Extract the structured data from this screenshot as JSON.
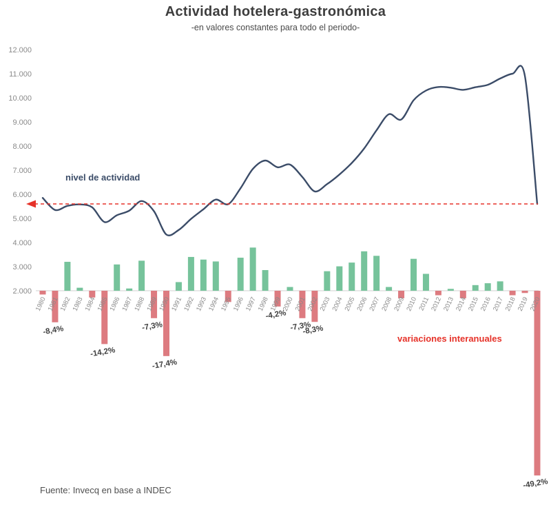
{
  "title": "Actividad hotelera-gastronómica",
  "subtitle": "-en valores constantes para todo el periodo-",
  "source": "Fuente: Invecq en base a INDEC",
  "series_labels": {
    "line": "nivel de actividad",
    "bars": "variaciones interanuales"
  },
  "colors": {
    "line": "#3b4c68",
    "bar_positive": "#76c39b",
    "bar_negative": "#dd7b80",
    "reference": "#e63229",
    "axis_text": "#8a8a8a",
    "annotation_text": "#3f3f3f",
    "title_text": "#3d3d3d",
    "subtitle_text": "#4a4a4a",
    "source_text": "#4f4f4f"
  },
  "chart_data": {
    "type": "line+bar combo",
    "title": "Actividad hotelera-gastronómica",
    "subtitle": "-en valores constantes para todo el periodo-",
    "x": [
      1980,
      1981,
      1982,
      1983,
      1984,
      1985,
      1986,
      1987,
      1988,
      1989,
      1990,
      1991,
      1992,
      1993,
      1994,
      1995,
      1996,
      1997,
      1998,
      1999,
      2000,
      2001,
      2002,
      2003,
      2004,
      2005,
      2006,
      2007,
      2008,
      2009,
      2010,
      2011,
      2012,
      2013,
      2014,
      2015,
      2016,
      2017,
      2018,
      2019,
      2020
    ],
    "series": [
      {
        "name": "nivel de actividad",
        "type": "line",
        "axis": "left",
        "values": [
          5850,
          5350,
          5520,
          5580,
          5460,
          4850,
          5130,
          5320,
          5720,
          5300,
          4330,
          4520,
          4980,
          5380,
          5780,
          5590,
          6250,
          7050,
          7400,
          7120,
          7230,
          6720,
          6120,
          6420,
          6820,
          7300,
          7900,
          8650,
          9320,
          9100,
          9900,
          10300,
          10450,
          10420,
          10330,
          10440,
          10540,
          10800,
          11000,
          10920,
          5600
        ]
      },
      {
        "name": "variaciones interanuales",
        "type": "bar",
        "unit": "%",
        "values": [
          -1.0,
          -8.4,
          7.7,
          0.8,
          -1.8,
          -14.2,
          7.0,
          0.6,
          8.0,
          -7.3,
          -17.4,
          2.3,
          9.0,
          8.3,
          7.8,
          -3.0,
          8.8,
          11.5,
          5.5,
          -4.2,
          1.0,
          -7.3,
          -8.3,
          5.2,
          6.5,
          7.5,
          10.5,
          9.3,
          1.0,
          -2.0,
          8.5,
          4.5,
          -1.2,
          0.5,
          -2.0,
          1.5,
          2.0,
          2.5,
          -1.2,
          -0.6,
          -49.2
        ]
      }
    ],
    "left_axis_ticks": [
      "12.000",
      "11.000",
      "10.000",
      "9.000",
      "8.000",
      "7.000",
      "6.000",
      "5.000",
      "4.000",
      "3.000",
      "2.000"
    ],
    "left_axis_range": [
      2000,
      12000
    ],
    "reference_line_value": 5600,
    "grid": "off",
    "annotations": [
      {
        "year": 1981,
        "label": "-8,4%"
      },
      {
        "year": 1985,
        "label": "-14,2%"
      },
      {
        "year": 1989,
        "label": "-7,3%"
      },
      {
        "year": 1990,
        "label": "-17,4%"
      },
      {
        "year": 1999,
        "label": "-4,2%"
      },
      {
        "year": 2001,
        "label": "-7,3%"
      },
      {
        "year": 2002,
        "label": "-8,3%"
      },
      {
        "year": 2020,
        "label": "-49,2%"
      }
    ]
  }
}
